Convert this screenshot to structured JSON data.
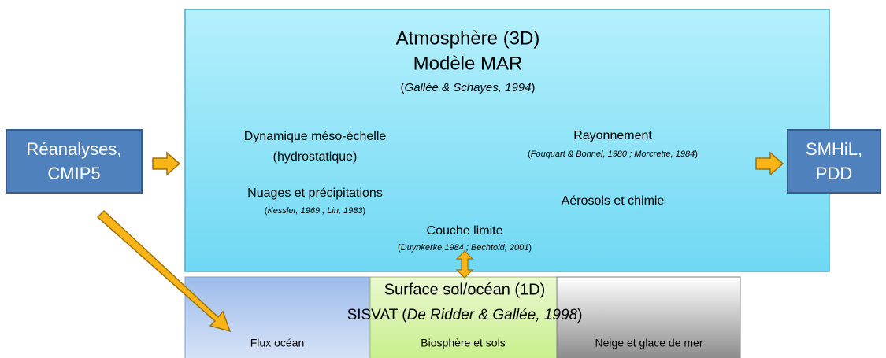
{
  "inputs": {
    "label": [
      "Réanalyses,",
      "CMIP5"
    ]
  },
  "outputs": {
    "label": [
      "SMHiL,",
      "PDD"
    ]
  },
  "atmosphere": {
    "title": [
      "Atmosphère (3D)",
      "Modèle MAR"
    ],
    "citation": [
      "(",
      "Gallée & Schayes, 1994",
      ")"
    ],
    "modules": [
      {
        "label": [
          "Dynamique méso-échelle",
          "(hydrostatique)"
        ]
      },
      {
        "label": [
          "Rayonnement"
        ],
        "citation": [
          "(",
          "Fouquart & Bonnel, 1980 ; Morcrette, 1984",
          ")"
        ]
      },
      {
        "label": [
          "Nuages et précipitations"
        ],
        "citation": [
          "(",
          "Kessler, 1969 ; Lin, 1983",
          ")"
        ]
      },
      {
        "label": [
          "Aérosols et chimie"
        ]
      },
      {
        "label": [
          "Couche limite"
        ],
        "citation": [
          "(",
          "Duynkerke,1984 ; Bechtold, 2001",
          ")"
        ]
      }
    ]
  },
  "surface": {
    "title": "Surface sol/océan (1D)",
    "subtitle": [
      "SISVAT (",
      "De Ridder & Gallée, 1998",
      ")"
    ],
    "components": [
      "Flux océan",
      "Biosphère et sols",
      "Neige et glace de mer"
    ]
  }
}
